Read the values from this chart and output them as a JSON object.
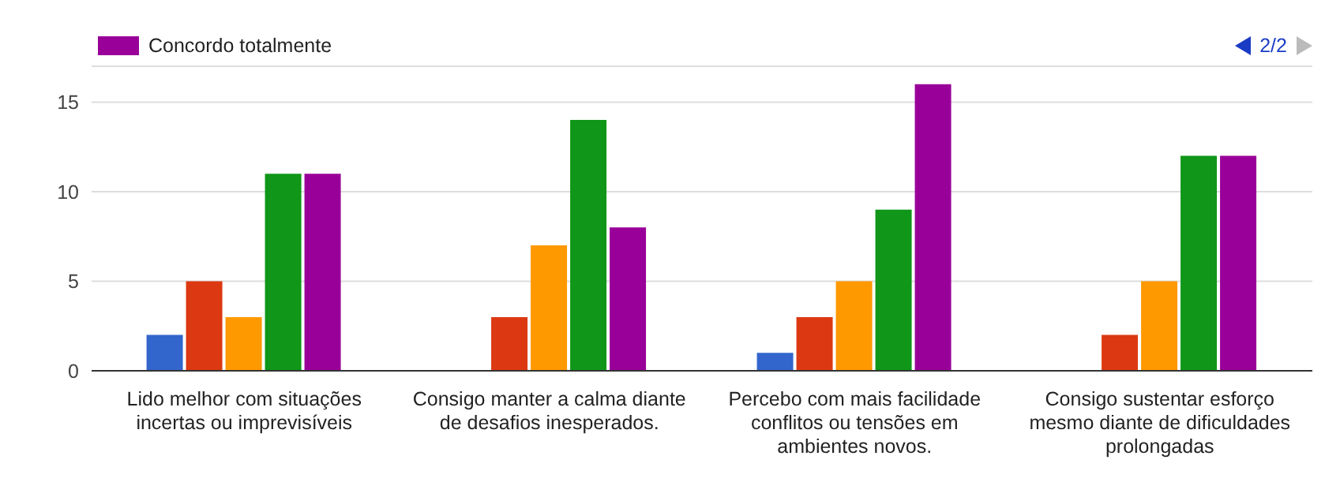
{
  "chart_data": {
    "type": "bar",
    "categories": [
      "Lido melhor com situações incertas ou imprevisíveis",
      "Consigo manter a calma diante de desafios inesperados.",
      "Percebo com mais facilidade conflitos ou tensões em ambientes novos.",
      "Consigo sustentar esforço mesmo diante de dificuldades prolongadas"
    ],
    "series": [
      {
        "color": "#3366cc",
        "values": [
          2,
          0,
          1,
          0
        ]
      },
      {
        "color": "#dc3912",
        "values": [
          5,
          3,
          3,
          2
        ]
      },
      {
        "color": "#ff9900",
        "values": [
          3,
          7,
          5,
          5
        ]
      },
      {
        "color": "#109618",
        "values": [
          11,
          14,
          9,
          12
        ]
      },
      {
        "name": "Concordo totalmente",
        "color": "#990099",
        "values": [
          11,
          8,
          16,
          12
        ]
      }
    ],
    "ylim": [
      0,
      17
    ],
    "yticks": [
      0,
      5,
      10,
      15
    ],
    "grid": "y",
    "legend": "top left",
    "annotations": [
      "2/2"
    ]
  }
}
